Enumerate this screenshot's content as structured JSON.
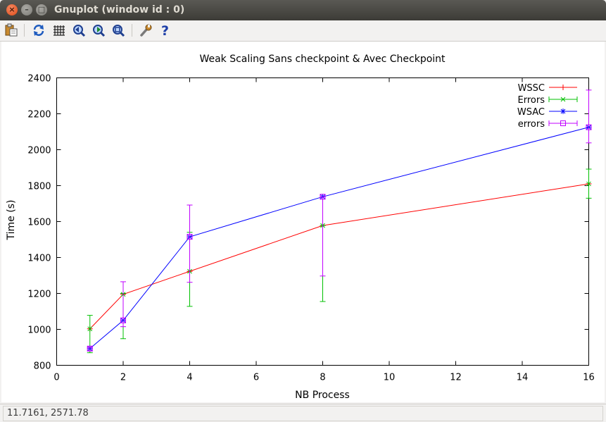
{
  "window": {
    "title": "Gnuplot (window id : 0)"
  },
  "toolbar": {
    "icons": [
      "copy-clipboard-icon",
      "replot-icon",
      "grid-icon",
      "zoom-previous-icon",
      "zoom-next-icon",
      "autoscale-icon",
      "options-icon",
      "help-icon"
    ]
  },
  "status": {
    "coordinates": "11.7161,  2571.78"
  },
  "colors": {
    "wssc": "#ff0000",
    "errors": "#00c000",
    "wsac": "#0000ff",
    "errors2": "#c000ff"
  },
  "chart_data": {
    "type": "line",
    "title": "Weak Scaling Sans checkpoint & Avec Checkpoint",
    "xlabel": "NB Process",
    "ylabel": "Time (s)",
    "xlim": [
      0,
      16
    ],
    "ylim": [
      800,
      2400
    ],
    "xticks": [
      "0",
      "2",
      "4",
      "6",
      "8",
      "10",
      "12",
      "14",
      "16"
    ],
    "yticks": [
      "800",
      "1000",
      "1200",
      "1400",
      "1600",
      "1800",
      "2000",
      "2200",
      "2400"
    ],
    "grid": false,
    "legend_position": "top-right",
    "series": [
      {
        "name": "WSSC",
        "style": "line",
        "marker": "plus",
        "x": [
          1,
          2,
          4,
          8,
          16
        ],
        "y": [
          1003,
          1195,
          1323,
          1578,
          1810
        ]
      },
      {
        "name": "Errors",
        "style": "errorbars",
        "marker": "cross",
        "x": [
          1,
          2,
          4,
          8,
          16
        ],
        "y": [
          1003,
          1195,
          1323,
          1578,
          1810
        ],
        "ylow": [
          870,
          948,
          1128,
          1155,
          1730
        ],
        "yhigh": [
          1078,
          1200,
          1540,
          1578,
          1892
        ]
      },
      {
        "name": "WSAC",
        "style": "line",
        "marker": "star",
        "x": [
          1,
          2,
          4,
          8,
          16
        ],
        "y": [
          893,
          1050,
          1515,
          1738,
          2125
        ]
      },
      {
        "name": "errors",
        "style": "errorbars",
        "marker": "square",
        "x": [
          1,
          2,
          4,
          8,
          16
        ],
        "y": [
          893,
          1050,
          1515,
          1738,
          2125
        ],
        "ylow": [
          880,
          1015,
          1262,
          1297,
          2038
        ],
        "yhigh": [
          900,
          1265,
          1692,
          1738,
          2332
        ]
      }
    ]
  }
}
